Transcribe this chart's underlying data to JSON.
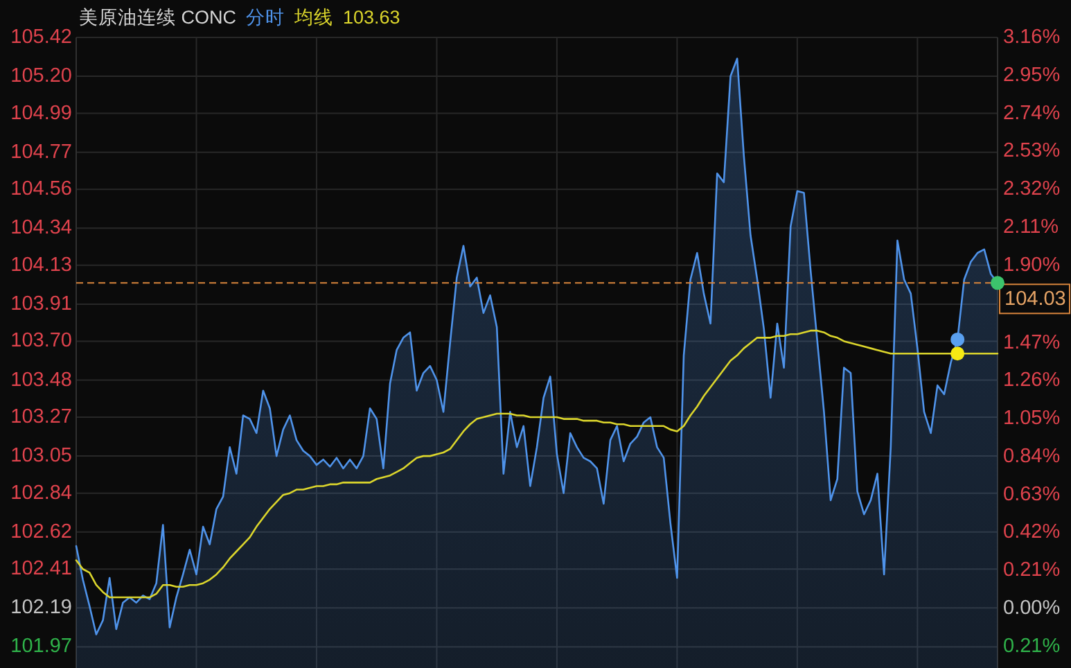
{
  "chart_data": {
    "type": "area",
    "title": "美原油连续 CONC",
    "legend": "top",
    "grid": true,
    "annotations": [
      "103.63"
    ],
    "categories": [
      null,
      null,
      null,
      null,
      null,
      null,
      null,
      null,
      null,
      null,
      null,
      null,
      null,
      null,
      null,
      null,
      null,
      null,
      null,
      null,
      null,
      null,
      null,
      null,
      null,
      null,
      null,
      null,
      null,
      null,
      null,
      null,
      null,
      null,
      null,
      null,
      null,
      null,
      null,
      null,
      null,
      null,
      null,
      null,
      null,
      null,
      null,
      null,
      null,
      null,
      null,
      null,
      null,
      null,
      null,
      null,
      null,
      null,
      null,
      null,
      null,
      null,
      null,
      null,
      null,
      null,
      null,
      null,
      null,
      null,
      null,
      null,
      null,
      null,
      null,
      null,
      null,
      null,
      null,
      null,
      null,
      null,
      null,
      null,
      null,
      null,
      null,
      null,
      null,
      null,
      null,
      null,
      null,
      null,
      null,
      null,
      null,
      null,
      null,
      null,
      null,
      null,
      null,
      null,
      null,
      null,
      null,
      null,
      null,
      null,
      null,
      null,
      null,
      null,
      null,
      null,
      null,
      null,
      null,
      null,
      null,
      null,
      null,
      null,
      null,
      null,
      null,
      null,
      null,
      null,
      null,
      null,
      null,
      null,
      null,
      null,
      null,
      null,
      null
    ],
    "series": [
      {
        "name": "分时",
        "color": "#4f93ea",
        "values": [
          102.54,
          102.35,
          102.2,
          102.04,
          102.12,
          102.36,
          102.07,
          102.22,
          102.25,
          102.22,
          102.26,
          102.24,
          102.33,
          102.66,
          102.08,
          102.25,
          102.38,
          102.52,
          102.38,
          102.65,
          102.55,
          102.75,
          102.82,
          103.1,
          102.95,
          103.28,
          103.26,
          103.18,
          103.42,
          103.32,
          103.05,
          103.2,
          103.28,
          103.14,
          103.08,
          103.05,
          103.0,
          103.03,
          102.99,
          103.04,
          102.98,
          103.03,
          102.98,
          103.05,
          103.32,
          103.26,
          102.98,
          103.46,
          103.65,
          103.72,
          103.75,
          103.42,
          103.52,
          103.56,
          103.48,
          103.3,
          103.69,
          104.06,
          104.24,
          104.01,
          104.06,
          103.86,
          103.96,
          103.78,
          102.95,
          103.3,
          103.1,
          103.22,
          102.88,
          103.1,
          103.38,
          103.5,
          103.06,
          102.84,
          103.18,
          103.1,
          103.04,
          103.02,
          102.98,
          102.78,
          103.14,
          103.22,
          103.02,
          103.12,
          103.16,
          103.24,
          103.27,
          103.1,
          103.04,
          102.67,
          102.36,
          103.62,
          104.05,
          104.2,
          103.97,
          103.8,
          104.65,
          104.6,
          105.2,
          105.3,
          104.75,
          104.3,
          104.05,
          103.77,
          103.38,
          103.8,
          103.55,
          104.35,
          104.55,
          104.54,
          104.1,
          103.7,
          103.3,
          102.8,
          102.92,
          103.55,
          103.52,
          102.85,
          102.72,
          102.8,
          102.95,
          102.38,
          103.1,
          104.27,
          104.05,
          103.97,
          103.66,
          103.3,
          103.18,
          103.45,
          103.4,
          103.58,
          103.71,
          104.05,
          104.15,
          104.2,
          104.22,
          104.08,
          104.03
        ]
      },
      {
        "name": "均线",
        "type": "line",
        "color": "#dcd62c",
        "values": [
          102.46,
          102.41,
          102.39,
          102.32,
          102.28,
          102.25,
          102.25,
          102.25,
          102.25,
          102.25,
          102.25,
          102.25,
          102.27,
          102.32,
          102.32,
          102.31,
          102.31,
          102.32,
          102.32,
          102.33,
          102.35,
          102.38,
          102.42,
          102.47,
          102.51,
          102.55,
          102.59,
          102.65,
          102.7,
          102.75,
          102.79,
          102.83,
          102.84,
          102.86,
          102.86,
          102.87,
          102.88,
          102.88,
          102.89,
          102.89,
          102.9,
          102.9,
          102.9,
          102.9,
          102.9,
          102.92,
          102.93,
          102.94,
          102.96,
          102.98,
          103.01,
          103.04,
          103.05,
          103.05,
          103.06,
          103.07,
          103.09,
          103.14,
          103.19,
          103.23,
          103.26,
          103.27,
          103.28,
          103.29,
          103.29,
          103.29,
          103.28,
          103.28,
          103.27,
          103.27,
          103.27,
          103.27,
          103.27,
          103.26,
          103.26,
          103.26,
          103.25,
          103.25,
          103.25,
          103.24,
          103.24,
          103.23,
          103.23,
          103.22,
          103.22,
          103.22,
          103.22,
          103.22,
          103.22,
          103.2,
          103.19,
          103.22,
          103.28,
          103.33,
          103.39,
          103.44,
          103.49,
          103.54,
          103.59,
          103.62,
          103.66,
          103.69,
          103.72,
          103.72,
          103.72,
          103.73,
          103.73,
          103.74,
          103.74,
          103.75,
          103.76,
          103.76,
          103.75,
          103.73,
          103.72,
          103.7,
          103.69,
          103.68,
          103.67,
          103.66,
          103.65,
          103.64,
          103.63,
          103.63,
          103.63,
          103.63,
          103.63,
          103.63,
          103.63,
          103.63,
          103.63,
          103.63,
          103.63,
          103.63,
          103.63,
          103.63,
          103.63,
          103.63,
          103.63
        ]
      },
      {
        "type": "scatter",
        "marker": "circle",
        "values": [
          null,
          null,
          null,
          null,
          null,
          null,
          null,
          null,
          null,
          null,
          null,
          null,
          null,
          null,
          null,
          null,
          null,
          null,
          null,
          null,
          null,
          null,
          null,
          null,
          null,
          null,
          null,
          null,
          null,
          null,
          null,
          null,
          null,
          null,
          null,
          null,
          null,
          null,
          null,
          null,
          null,
          null,
          null,
          null,
          null,
          null,
          null,
          null,
          null,
          null,
          null,
          null,
          null,
          null,
          null,
          null,
          null,
          null,
          null,
          null,
          null,
          null,
          null,
          null,
          null,
          null,
          null,
          null,
          null,
          null,
          null,
          null,
          null,
          null,
          null,
          null,
          null,
          null,
          null,
          null,
          null,
          null,
          null,
          null,
          null,
          null,
          null,
          null,
          null,
          null,
          null,
          null,
          null,
          null,
          null,
          null,
          null,
          null,
          null,
          null,
          null,
          null,
          null,
          null,
          null,
          null,
          null,
          null,
          null,
          null,
          null,
          null,
          null,
          null,
          null,
          null,
          null,
          null,
          null,
          null,
          null,
          null,
          null,
          null,
          null,
          null,
          null,
          null,
          null,
          null,
          null,
          null,
          103.71,
          null,
          null,
          null,
          null,
          null,
          104.03
        ],
        "colors": [
          null,
          null,
          null,
          null,
          null,
          null,
          null,
          null,
          null,
          null,
          null,
          null,
          null,
          null,
          null,
          null,
          null,
          null,
          null,
          null,
          null,
          null,
          null,
          null,
          null,
          null,
          null,
          null,
          null,
          null,
          null,
          null,
          null,
          null,
          null,
          null,
          null,
          null,
          null,
          null,
          null,
          null,
          null,
          null,
          null,
          null,
          null,
          null,
          null,
          null,
          null,
          null,
          null,
          null,
          null,
          null,
          null,
          null,
          null,
          null,
          null,
          null,
          null,
          null,
          null,
          null,
          null,
          null,
          null,
          null,
          null,
          null,
          null,
          null,
          null,
          null,
          null,
          null,
          null,
          null,
          null,
          null,
          null,
          null,
          null,
          null,
          null,
          null,
          null,
          null,
          null,
          null,
          null,
          null,
          null,
          null,
          null,
          null,
          null,
          null,
          null,
          null,
          null,
          null,
          null,
          null,
          null,
          null,
          null,
          null,
          null,
          null,
          null,
          null,
          null,
          null,
          null,
          null,
          null,
          null,
          null,
          null,
          null,
          null,
          null,
          null,
          null,
          null,
          null,
          null,
          null,
          null,
          "#5aa0f0",
          null,
          null,
          null,
          null,
          null,
          "#3cc46c"
        ]
      },
      {
        "type": "scatter",
        "marker": "circle",
        "color": "#f5ea14",
        "values": [
          null,
          null,
          null,
          null,
          null,
          null,
          null,
          null,
          null,
          null,
          null,
          null,
          null,
          null,
          null,
          null,
          null,
          null,
          null,
          null,
          null,
          null,
          null,
          null,
          null,
          null,
          null,
          null,
          null,
          null,
          null,
          null,
          null,
          null,
          null,
          null,
          null,
          null,
          null,
          null,
          null,
          null,
          null,
          null,
          null,
          null,
          null,
          null,
          null,
          null,
          null,
          null,
          null,
          null,
          null,
          null,
          null,
          null,
          null,
          null,
          null,
          null,
          null,
          null,
          null,
          null,
          null,
          null,
          null,
          null,
          null,
          null,
          null,
          null,
          null,
          null,
          null,
          null,
          null,
          null,
          null,
          null,
          null,
          null,
          null,
          null,
          null,
          null,
          null,
          null,
          null,
          null,
          null,
          null,
          null,
          null,
          null,
          null,
          null,
          null,
          null,
          null,
          null,
          null,
          null,
          null,
          null,
          null,
          null,
          null,
          null,
          null,
          null,
          null,
          null,
          null,
          null,
          null,
          null,
          null,
          null,
          null,
          null,
          null,
          null,
          null,
          null,
          null,
          null,
          null,
          null,
          null,
          103.63,
          null,
          null,
          null,
          null,
          null,
          null
        ]
      }
    ],
    "ylim": [
      101.85,
      105.42
    ],
    "yticks": [
      101.97,
      102.19,
      102.41,
      102.62,
      102.84,
      103.05,
      103.27,
      103.48,
      {
        "value": 103.7,
        "label": "103.70"
      },
      103.91,
      104.13,
      104.34,
      104.56,
      104.77,
      104.99,
      {
        "value": 105.2,
        "label": "105.20"
      },
      105.42
    ],
    "y2lim": [
      -0.33,
      3.16
    ],
    "y2ticks": [
      {
        "value": -0.21,
        "label": "0.21%"
      },
      {
        "value": 0,
        "label": "0.00%"
      },
      {
        "value": 0.21,
        "label": "0.21%"
      },
      {
        "value": 0.42,
        "label": "0.42%"
      },
      {
        "value": 0.63,
        "label": "0.63%"
      },
      {
        "value": 0.84,
        "label": "0.84%"
      },
      {
        "value": 1.05,
        "label": "1.05%"
      },
      {
        "value": 1.26,
        "label": "1.26%"
      },
      {
        "value": 1.47,
        "label": "1.47%"
      },
      {
        "value": 1.9,
        "label": "1.90%"
      },
      {
        "value": 2.11,
        "label": "2.11%"
      },
      {
        "value": 2.32,
        "label": "2.32%"
      },
      {
        "value": 2.53,
        "label": "2.53%"
      },
      {
        "value": 2.74,
        "label": "2.74%"
      },
      {
        "value": 2.95,
        "label": "2.95%"
      },
      {
        "value": 3.16,
        "label": "3.16%"
      }
    ],
    "ref_lines": [
      {
        "axis": "y",
        "value": 104.03,
        "label": "104.03",
        "color": "#d9853c",
        "line_style": "dashed"
      }
    ]
  }
}
